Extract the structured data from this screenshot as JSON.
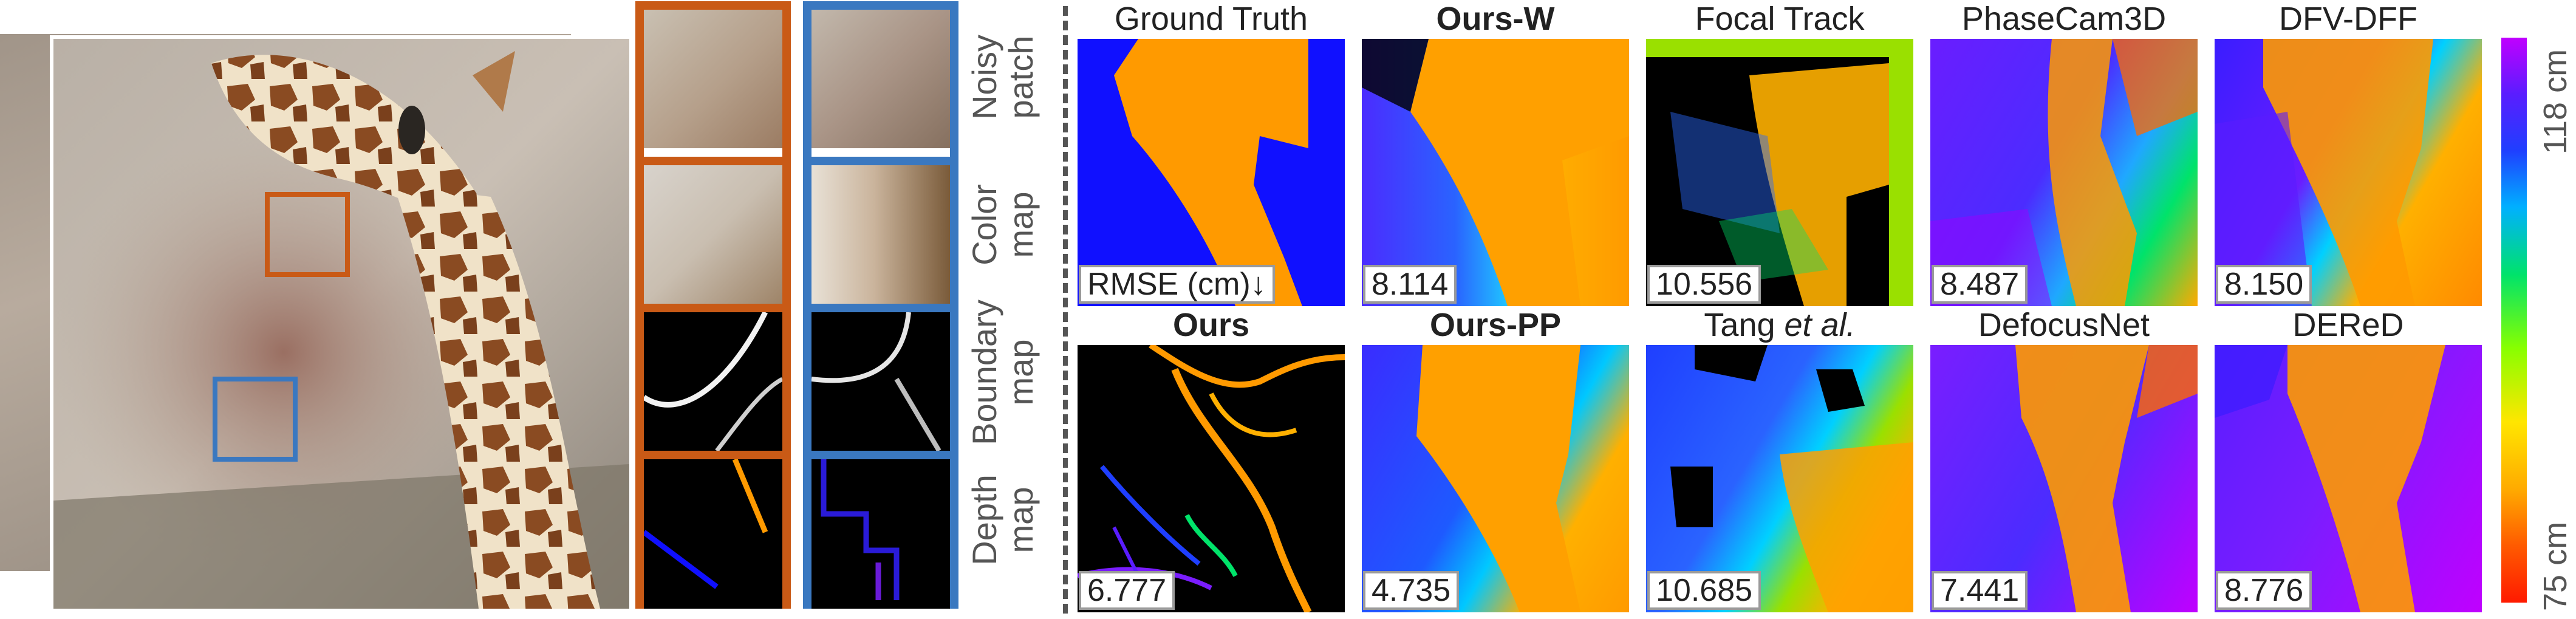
{
  "row_labels": [
    {
      "line1": "Noisy",
      "line2": "patch"
    },
    {
      "line1": "Color",
      "line2": "map"
    },
    {
      "line1": "Boundary",
      "line2": "map"
    },
    {
      "line1": "Depth",
      "line2": "map"
    }
  ],
  "top_row": [
    {
      "title": "Ground Truth",
      "bold": false,
      "value": "RMSE (cm)↓"
    },
    {
      "title": "Ours-W",
      "bold": true,
      "value": "8.114"
    },
    {
      "title": "Focal Track",
      "bold": false,
      "value": "10.556"
    },
    {
      "title": "PhaseCam3D",
      "bold": false,
      "value": "8.487"
    },
    {
      "title": "DFV-DFF",
      "bold": false,
      "value": "8.150"
    }
  ],
  "bottom_row": [
    {
      "title": "Ours",
      "bold": true,
      "value": "6.777"
    },
    {
      "title": "Ours-PP",
      "bold": true,
      "value": "4.735"
    },
    {
      "title_main": "Tang ",
      "title_italic": "et al.",
      "bold": false,
      "value": "10.685"
    },
    {
      "title": "DefocusNet",
      "bold": false,
      "value": "7.441"
    },
    {
      "title": "DEReD",
      "bold": false,
      "value": "8.776"
    }
  ],
  "colorbar": {
    "top_label": "118 cm",
    "bottom_label": "75 cm"
  },
  "colors": {
    "orange_box": "#c95a16",
    "blue_box": "#3a78c0",
    "depth_orange": "#ff9a00",
    "depth_blue": "#1010ff"
  }
}
